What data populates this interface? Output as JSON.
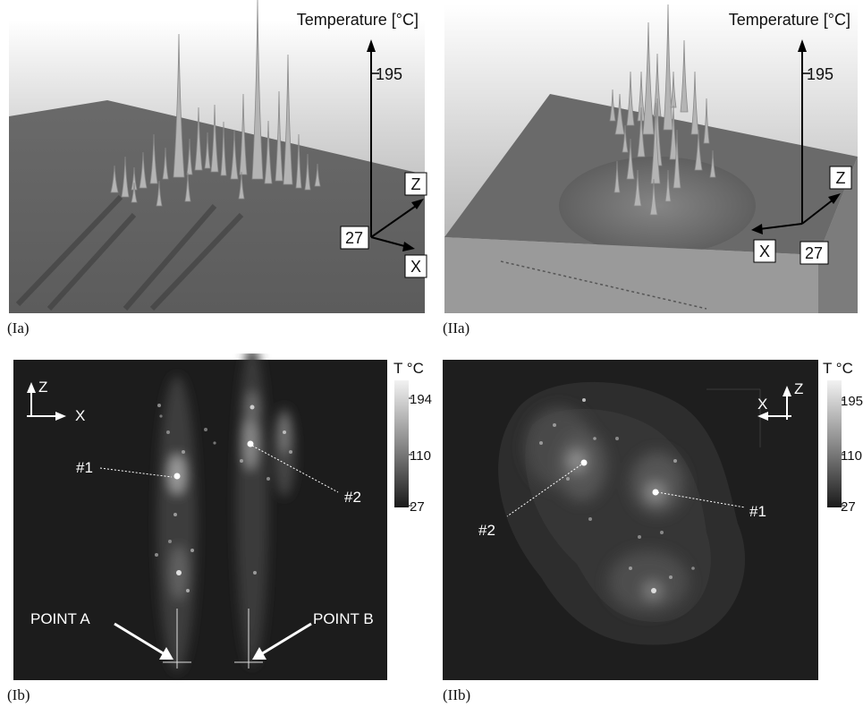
{
  "panels": {
    "Ia": {
      "caption": "(Ia)",
      "axis_title": "Temperature [°C]",
      "tick_max": "195",
      "tick_min": "27",
      "axis_z": "Z",
      "axis_x": "X"
    },
    "IIa": {
      "caption": "(IIa)",
      "axis_title": "Temperature [°C]",
      "tick_max": "195",
      "tick_min": "27",
      "axis_z": "Z",
      "axis_x": "X"
    },
    "Ib": {
      "caption": "(Ib)",
      "colorbar_title": "T °C",
      "colorbar_max": "194",
      "colorbar_mid": "110",
      "colorbar_min": "27",
      "axis_z": "Z",
      "axis_x": "X",
      "marker_1": "#1",
      "marker_2": "#2",
      "point_a": "POINT A",
      "point_b": "POINT B"
    },
    "IIb": {
      "caption": "(IIb)",
      "colorbar_title": "T °C",
      "colorbar_max": "195",
      "colorbar_mid": "110",
      "colorbar_min": "27",
      "axis_z": "Z",
      "axis_x": "X",
      "marker_1": "#1",
      "marker_2": "#2"
    }
  }
}
